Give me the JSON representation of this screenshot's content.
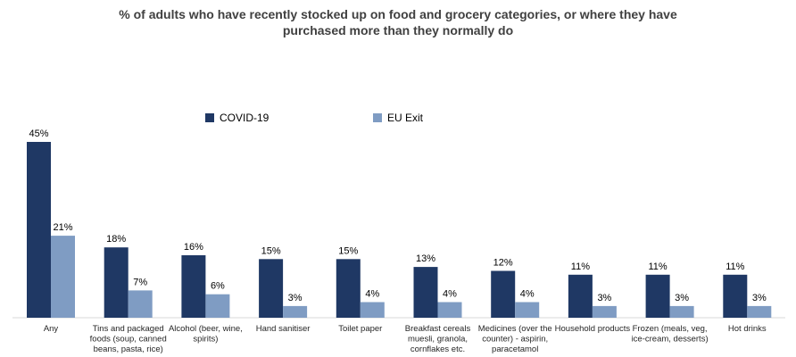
{
  "chart_data": {
    "type": "bar",
    "title_lines": [
      "% of adults who have recently stocked up on food and grocery categories, or where they have",
      "purchased more than they normally do"
    ],
    "categories": [
      [
        "Any"
      ],
      [
        "Tins and packaged",
        "foods (soup, canned",
        "beans, pasta, rice)"
      ],
      [
        "Alcohol (beer, wine,",
        "spirits)"
      ],
      [
        "Hand sanitiser"
      ],
      [
        "Toilet paper"
      ],
      [
        "Breakfast cereals",
        "muesli, granola,",
        "cornflakes etc."
      ],
      [
        "Medicines (over the",
        "counter) - aspirin,",
        "paracetamol"
      ],
      [
        "Household products"
      ],
      [
        "Frozen (meals, veg,",
        "ice-cream, desserts)"
      ],
      [
        "Hot drinks"
      ]
    ],
    "series": [
      {
        "name": "COVID-19",
        "color": "#1f3864",
        "values": [
          45,
          18,
          16,
          15,
          15,
          13,
          12,
          11,
          11,
          11
        ]
      },
      {
        "name": "EU Exit",
        "color": "#7f9cc3",
        "values": [
          21,
          7,
          6,
          3,
          4,
          4,
          4,
          3,
          3,
          3
        ]
      }
    ],
    "value_suffix": "%",
    "ylim": [
      0,
      50
    ],
    "grid": false,
    "legend_position": "top-center"
  }
}
